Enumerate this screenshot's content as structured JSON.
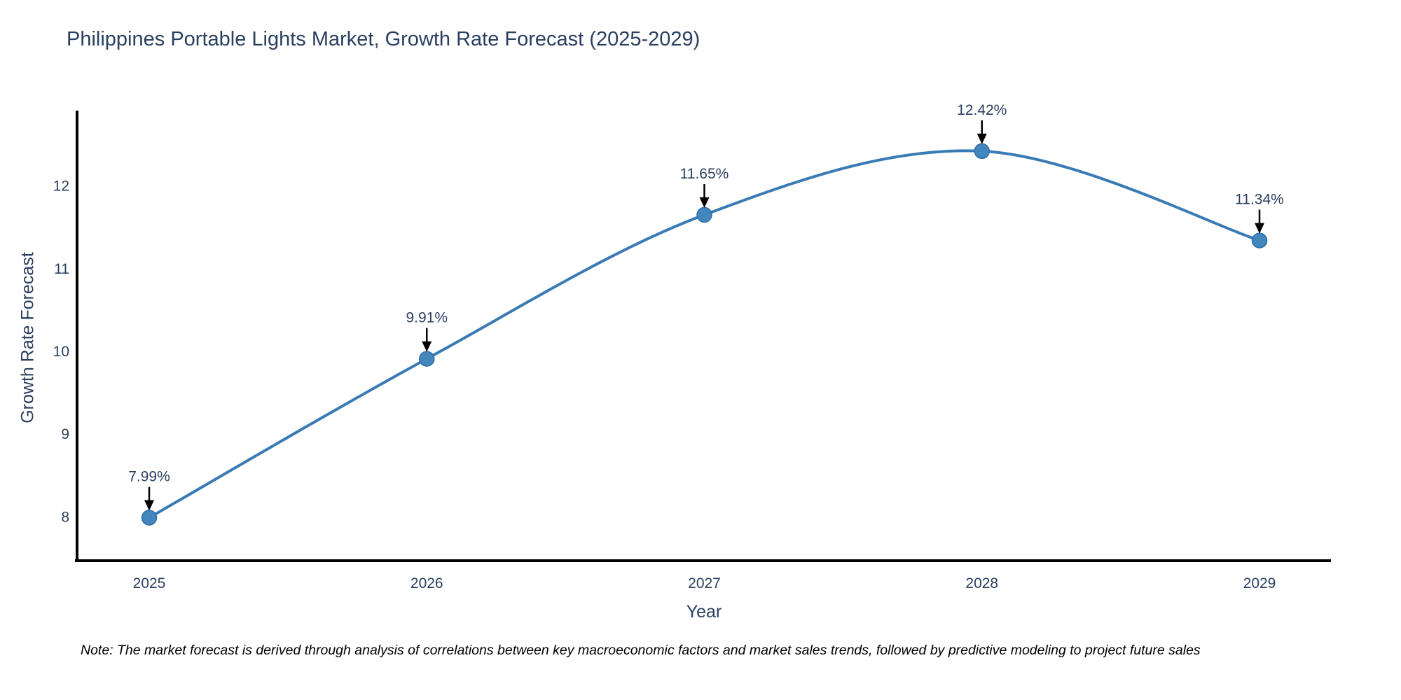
{
  "title": {
    "text": "Philippines Portable Lights Market, Growth Rate Forecast (2025-2029)"
  },
  "note": {
    "text": "Note: The market forecast is derived through analysis of correlations between key macroeconomic factors and market sales trends, followed by predictive modeling to project future sales"
  },
  "chart_data": {
    "type": "line",
    "line_shape": "spline",
    "title": "Philippines Portable Lights Market, Growth Rate Forecast (2025-2029)",
    "xlabel": "Year",
    "ylabel": "Growth Rate Forecast",
    "categories": [
      "2025",
      "2026",
      "2027",
      "2028",
      "2029"
    ],
    "series": [
      {
        "name": "Growth Rate Forecast",
        "values": [
          7.99,
          9.91,
          11.65,
          12.42,
          11.34
        ]
      }
    ],
    "point_labels": [
      "7.99%",
      "9.91%",
      "11.65%",
      "12.42%",
      "11.34%"
    ],
    "yticks": [
      8,
      9,
      10,
      11,
      12
    ],
    "ylim": [
      7.47,
      12.91
    ],
    "grid": false,
    "legend": "none",
    "annotations_arrow": true
  },
  "colors": {
    "line": "#3a7ab5",
    "marker": "#4286bd",
    "marker_edge": "#2f6da8",
    "axis": "#000000",
    "tick_text": "#2a3f5f",
    "annotation_text": "#2a3f5f",
    "arrow": "#000000",
    "note_text": "#000000",
    "background": "#ffffff"
  }
}
